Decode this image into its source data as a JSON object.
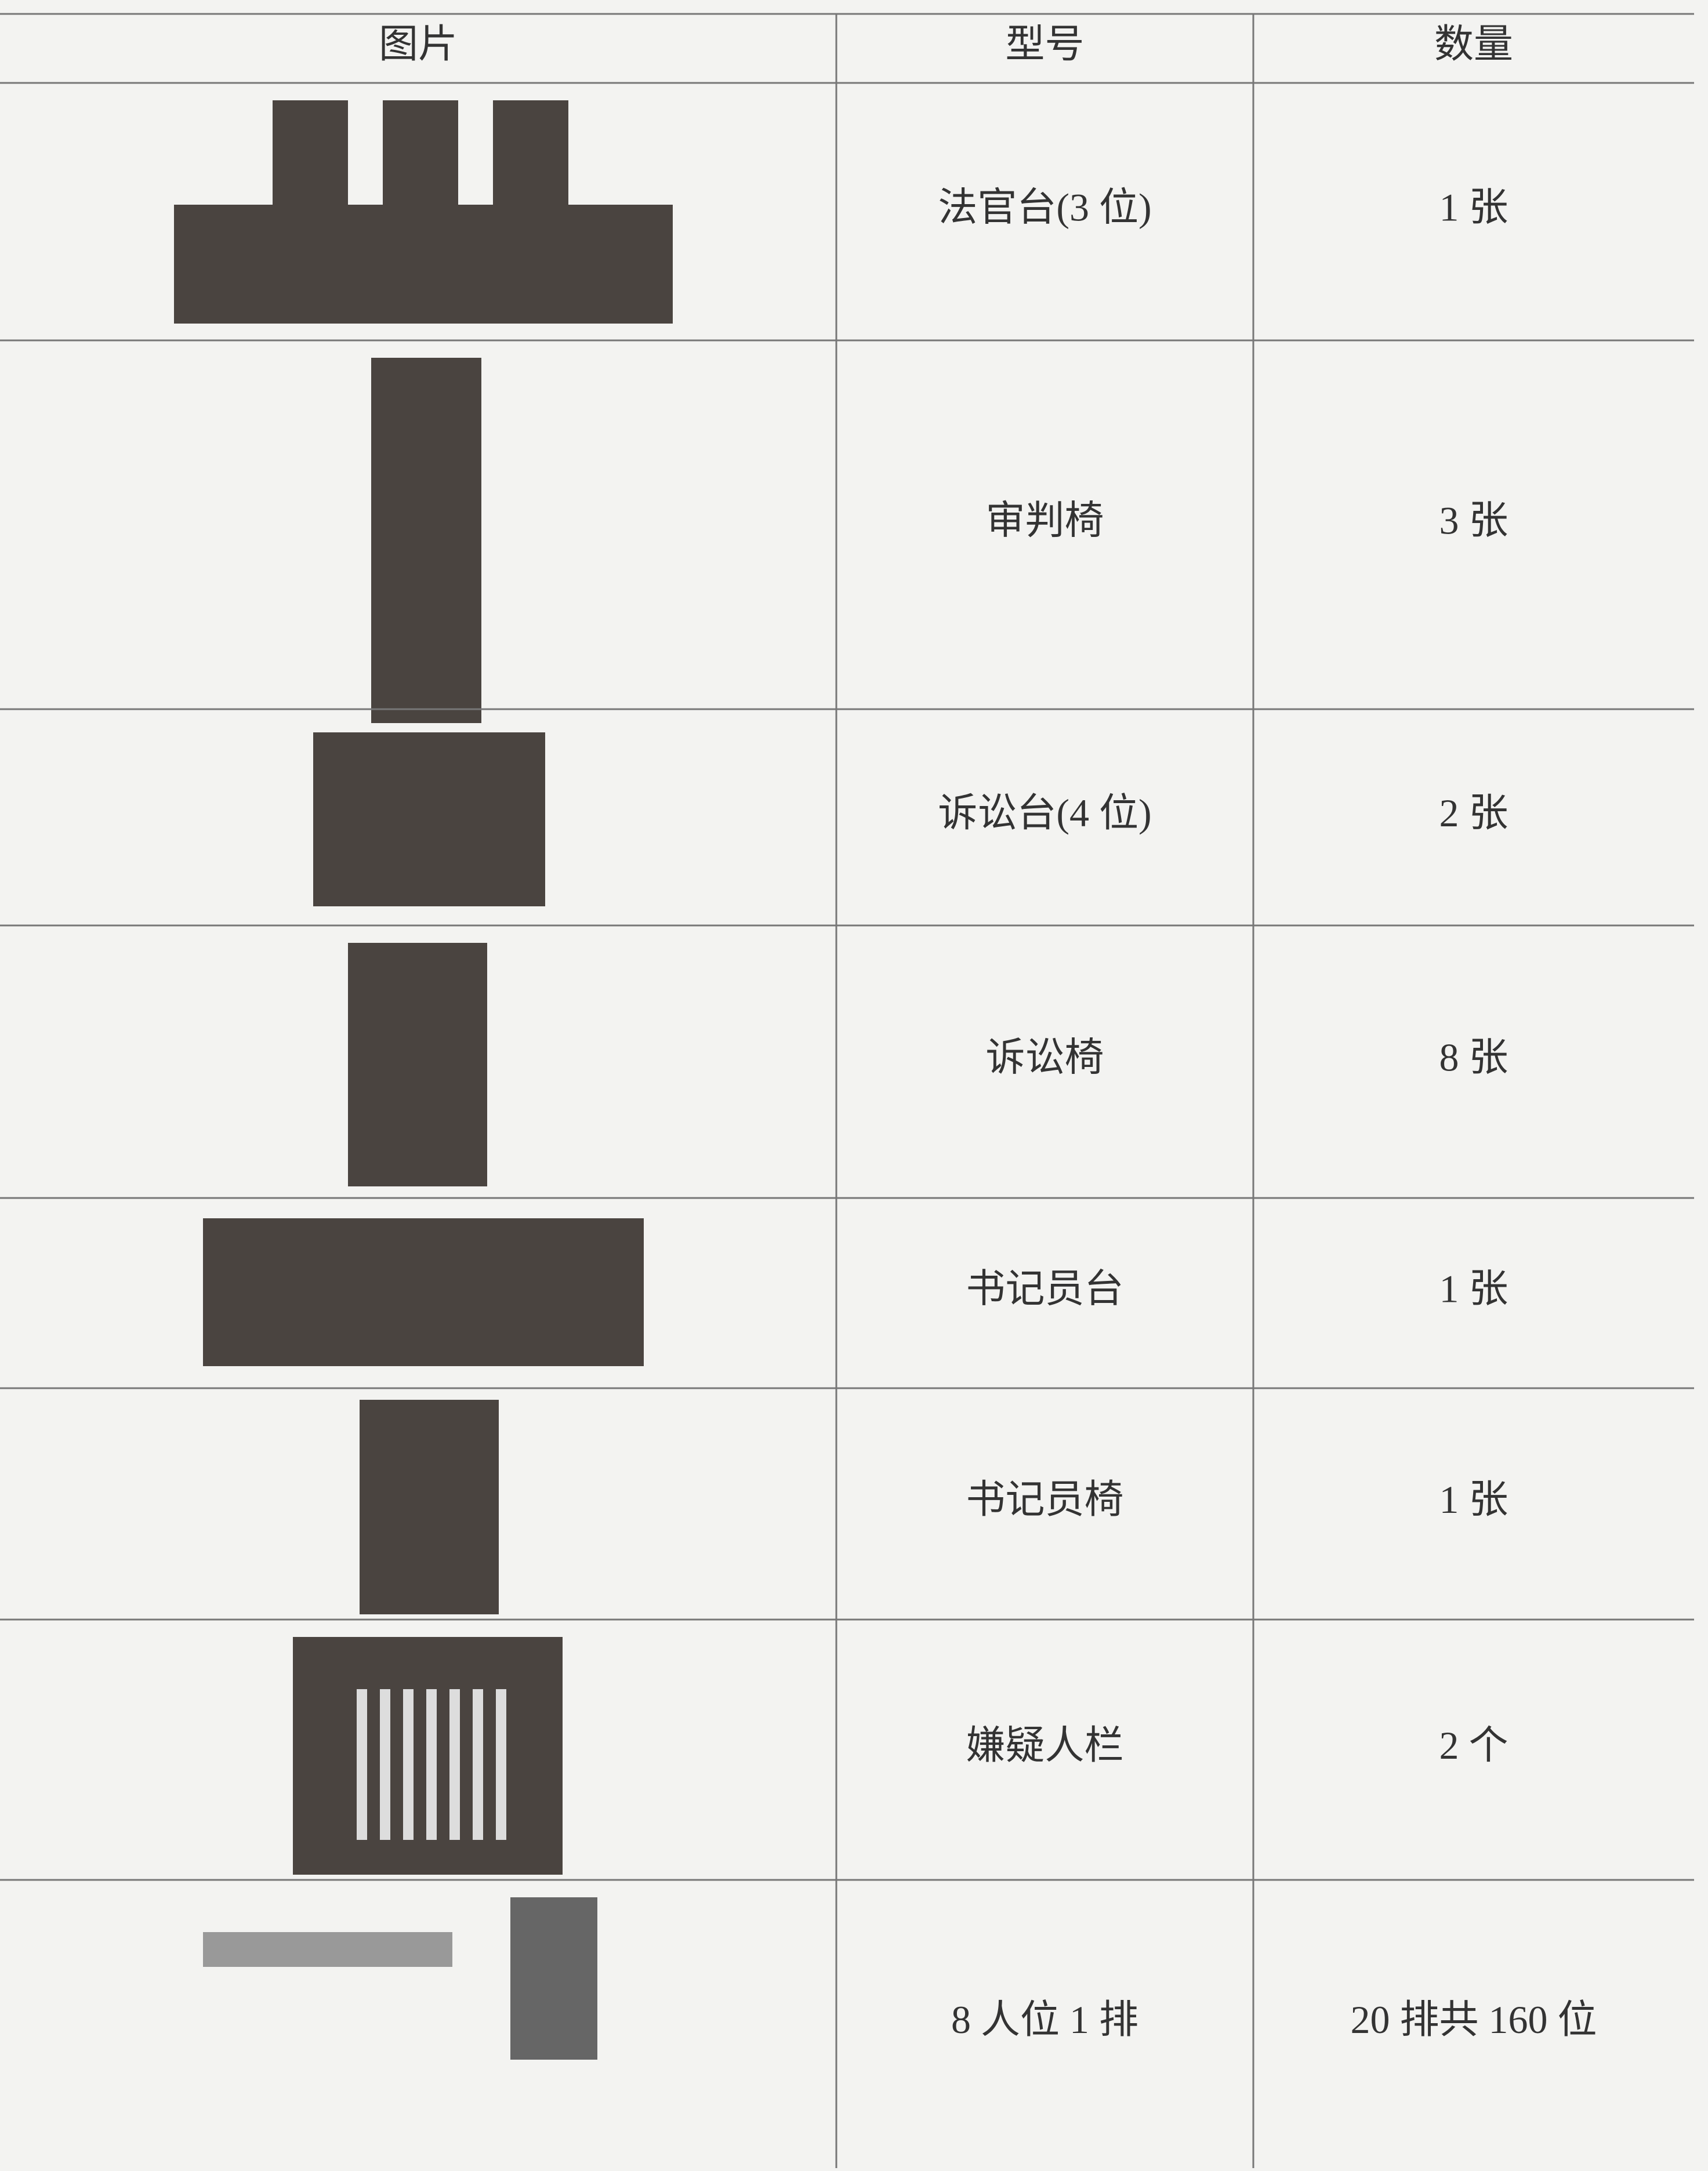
{
  "table": {
    "header": [
      "图片",
      "型号",
      "数量"
    ],
    "rows": [
      [
        "法官台(3 位)",
        "1 张"
      ],
      [
        "审判椅",
        "3 张"
      ],
      [
        "诉讼台(4 位)",
        "2 张"
      ],
      [
        "诉讼椅",
        "8 张"
      ],
      [
        "书记员台",
        "1 张"
      ],
      [
        "书记员椅",
        "1 张"
      ],
      [
        "嫌疑人栏",
        "2 个"
      ],
      [
        "8 人位 1 排",
        "20 排共 160 位"
      ]
    ]
  }
}
